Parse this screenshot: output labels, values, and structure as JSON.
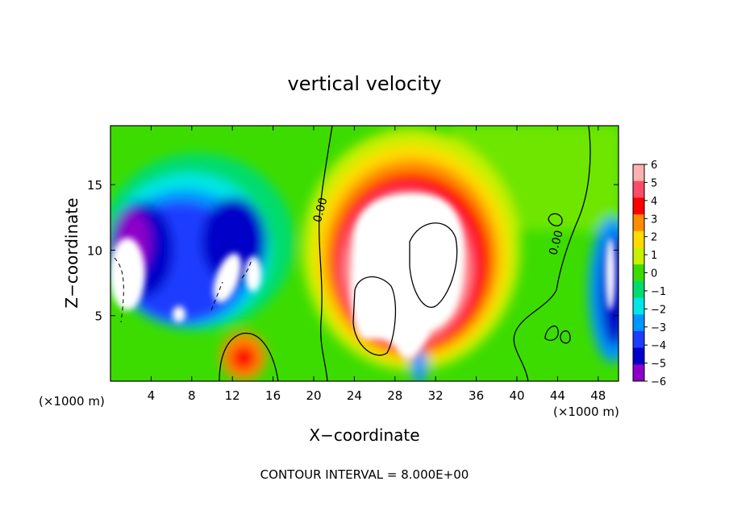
{
  "chart_data": {
    "type": "heatmap",
    "title": "vertical velocity",
    "xlabel": "X−coordinate",
    "ylabel": "Z−coordinate",
    "x_unit_left": "(×1000 m)",
    "x_unit_right": "(×1000 m)",
    "xlim": [
      0,
      50
    ],
    "ylim": [
      0,
      19.5
    ],
    "xticks": [
      4,
      8,
      12,
      16,
      20,
      24,
      28,
      32,
      36,
      40,
      44,
      48
    ],
    "yticks": [
      5,
      10,
      15
    ],
    "grid": false,
    "colorbar": {
      "levels": [
        6,
        5,
        4,
        3,
        2,
        1,
        0,
        -1,
        -2,
        -3,
        -4,
        -5,
        -6
      ],
      "level_labels": [
        "6",
        "5",
        "4",
        "3",
        "2",
        "1",
        "0",
        "−1",
        "−2",
        "−3",
        "−4",
        "−5",
        "−6"
      ],
      "colors": [
        "#ffb0b0",
        "#ff4a6a",
        "#ff0000",
        "#ff8c00",
        "#ffdc00",
        "#c8f000",
        "#3cdc00",
        "#00dc6e",
        "#00e6e6",
        "#0096ff",
        "#1e3cff",
        "#0000c8",
        "#8c00c8"
      ]
    },
    "contour_labels": [
      {
        "text": "0.00",
        "x": 21.0,
        "y": 13.0
      },
      {
        "text": "0.00",
        "x": 44.2,
        "y": 10.5
      }
    ],
    "footer": "CONTOUR INTERVAL = 8.000E+00"
  }
}
